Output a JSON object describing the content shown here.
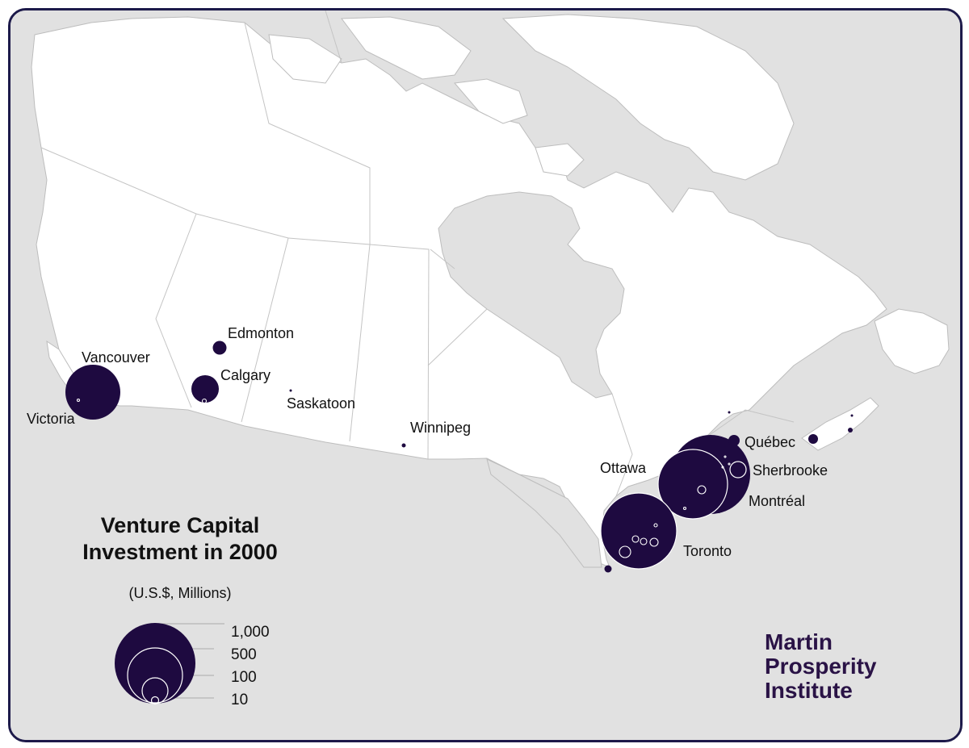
{
  "title_line1": "Venture Capital",
  "title_line2": "Investment in 2000",
  "subtitle": "(U.S.$, Millions)",
  "legend": {
    "values": [
      "1,000",
      "500",
      "100",
      "10"
    ]
  },
  "logo": {
    "line1": "Martin",
    "line2": "Prosperity",
    "line3": "Institute"
  },
  "colors": {
    "water": "#e1e1e1",
    "land": "#ffffff",
    "bubble": "#1e0a40",
    "frame": "#1d1a4a",
    "logo": "#2a1346"
  },
  "cities": [
    {
      "name": "Vancouver",
      "label": "Vancouver"
    },
    {
      "name": "Victoria",
      "label": "Victoria"
    },
    {
      "name": "Edmonton",
      "label": "Edmonton"
    },
    {
      "name": "Calgary",
      "label": "Calgary"
    },
    {
      "name": "Saskatoon",
      "label": "Saskatoon"
    },
    {
      "name": "Winnipeg",
      "label": "Winnipeg"
    },
    {
      "name": "Ottawa",
      "label": "Ottawa"
    },
    {
      "name": "Toronto",
      "label": "Toronto"
    },
    {
      "name": "Montreal",
      "label": "Montréal"
    },
    {
      "name": "Quebec",
      "label": "Québec"
    },
    {
      "name": "Sherbrooke",
      "label": "Sherbrooke"
    }
  ]
}
